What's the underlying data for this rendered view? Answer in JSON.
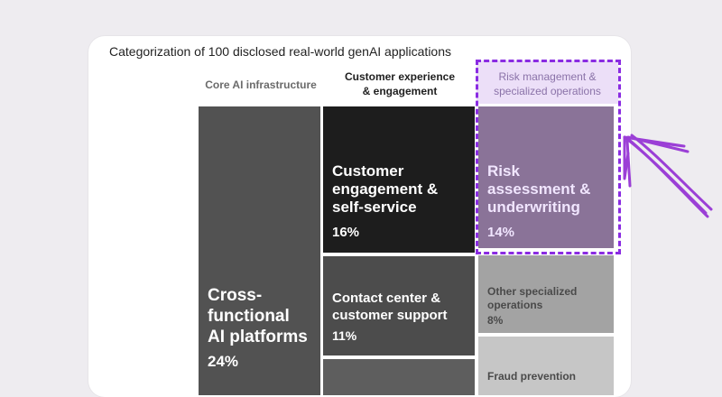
{
  "chart_data": {
    "type": "treemap",
    "title": "Categorization of 100 disclosed real-world genAI applications",
    "columns": [
      {
        "name": "Core AI infrastructure",
        "tiles": [
          {
            "label": "Cross-\nfunctional\nAI platforms",
            "value": 24,
            "pct_label": "24%"
          }
        ]
      },
      {
        "name": "Customer experience\n& engagement",
        "tiles": [
          {
            "label": "Customer\nengagement &\nself-service",
            "value": 16,
            "pct_label": "16%"
          },
          {
            "label": "Contact center &\ncustomer support",
            "value": 11,
            "pct_label": "11%"
          },
          {
            "label": "",
            "value": null,
            "pct_label": ""
          }
        ]
      },
      {
        "name": "Risk management &\nspecialized operations",
        "highlighted": true,
        "tiles": [
          {
            "label": "Risk\nassessment &\nunderwriting",
            "value": 14,
            "pct_label": "14%"
          },
          {
            "label": "Other specialized\noperations",
            "value": 8,
            "pct_label": "8%"
          },
          {
            "label": "Fraud prevention",
            "value": null,
            "pct_label": ""
          }
        ]
      }
    ],
    "colors": {
      "cross_functional": "#525252",
      "customer_engagement": "#1d1d1d",
      "contact_center": "#4c4c4c",
      "third_cx_tile": "#5e5e5e",
      "risk_assessment": "#8a7398",
      "other_specialized": "#a3a3a3",
      "fraud_prevention": "#c6c6c6",
      "highlight_border": "#8a2be2",
      "highlight_fill": "#ecdff8",
      "arrow": "#9b3fd6"
    }
  }
}
